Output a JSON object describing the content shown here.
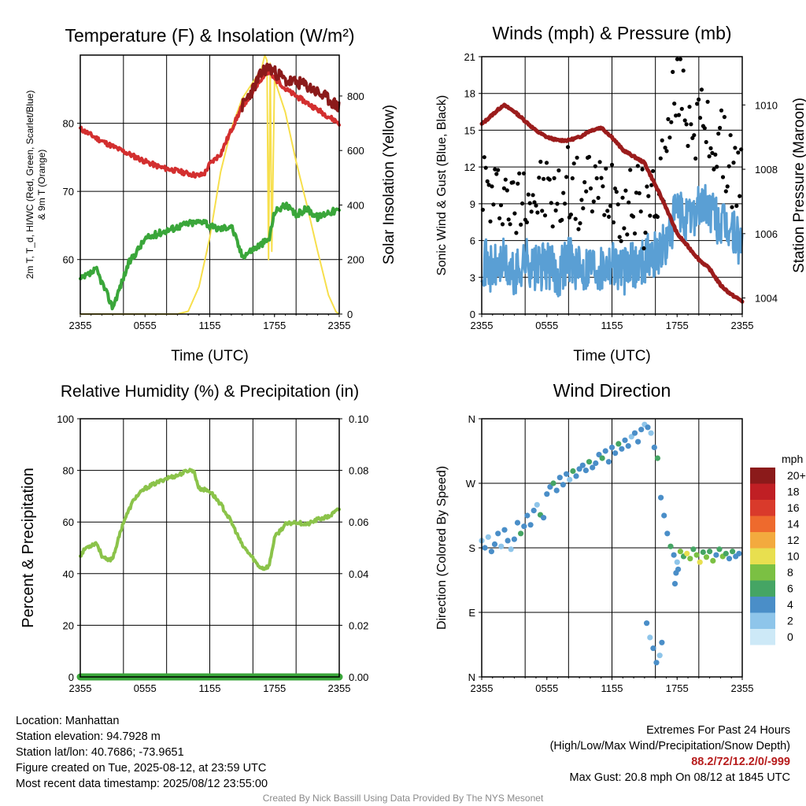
{
  "colors": {
    "temperature": "#d32f2f",
    "heat_index": "#8b1a1a",
    "dewpoint": "#3aa63a",
    "insolation": "#f7df4c",
    "wind": "#5a9fd4",
    "gust": "#000000",
    "pressure": "#9b1c1c",
    "humidity": "#8bc34a",
    "precip": "#3aa63a"
  },
  "x_ticks": [
    "2355",
    "0555",
    "1155",
    "1755",
    "2355"
  ],
  "xlabel_time": "Time (UTC)",
  "chart_data": [
    {
      "id": "temp",
      "type": "line",
      "title": "Temperature (F) & Insolation (W/m²)",
      "xlabel": "Time (UTC)",
      "ylabel_lines": [
        "2m T, T_d, HI/WC (Red, Green, Scarlet/Blue)",
        "& 9m T (Orange)"
      ],
      "ylabel_right": "Solar Insolation (Yellow)",
      "ylim": [
        52,
        90
      ],
      "y_ticks": [
        60,
        70,
        80
      ],
      "ylim_right": [
        0,
        950
      ],
      "y_ticks_right": [
        0,
        200,
        400,
        600,
        800
      ],
      "x": [
        0,
        1.5,
        3,
        4.5,
        6,
        7.5,
        9,
        10,
        11,
        11.5,
        12,
        13,
        14,
        15,
        16,
        16.5,
        17,
        17.5,
        18,
        18.5,
        19,
        20,
        21,
        22,
        23,
        24
      ],
      "series": [
        {
          "key": "temperature",
          "values": [
            79.2,
            77.8,
            76.6,
            75.5,
            74.4,
            73.5,
            73.0,
            72.6,
            72.3,
            72.6,
            74.0,
            75.5,
            79.0,
            82.5,
            84.5,
            86.0,
            87.0,
            87.5,
            86.5,
            86.0,
            85.0,
            84.0,
            83.0,
            82.0,
            81.0,
            80.0
          ]
        },
        {
          "key": "heat_index",
          "values": [
            null,
            null,
            null,
            null,
            null,
            null,
            null,
            null,
            null,
            null,
            null,
            null,
            null,
            82.5,
            85.0,
            86.5,
            87.8,
            88.2,
            87.5,
            87.0,
            86.2,
            86.0,
            85.5,
            84.5,
            83.5,
            82.3
          ]
        },
        {
          "key": "dewpoint",
          "values": [
            57.0,
            58.5,
            53.0,
            59.5,
            63.0,
            64.0,
            64.8,
            65.3,
            65.5,
            65.8,
            64.8,
            64.5,
            65.0,
            60.5,
            61.5,
            62.0,
            62.5,
            63.0,
            67.0,
            67.5,
            68.0,
            66.5,
            67.5,
            66.2,
            67.0,
            67.2
          ]
        }
      ],
      "insolation_x": [
        0,
        3,
        6,
        9,
        10,
        11,
        12,
        13,
        14,
        15,
        16,
        16.8,
        17.1,
        17.3,
        17.45,
        17.6,
        17.75,
        18,
        19,
        20,
        21,
        22,
        23,
        23.7,
        24
      ],
      "insolation": [
        0,
        0,
        0,
        0,
        10,
        100,
        280,
        520,
        680,
        790,
        850,
        900,
        950,
        930,
        200,
        920,
        230,
        860,
        740,
        560,
        400,
        230,
        70,
        8,
        0
      ]
    },
    {
      "id": "wind",
      "type": "line",
      "title": "Winds (mph) & Pressure (mb)",
      "xlabel": "Time (UTC)",
      "ylabel": "Sonic Wind & Gust (Blue, Black)",
      "ylabel_right": "Station Pressure (Maroon)",
      "ylim": [
        0,
        21
      ],
      "y_ticks": [
        0,
        3,
        6,
        9,
        12,
        15,
        18,
        21
      ],
      "ylim_right": [
        1003.5,
        1011.5
      ],
      "y_ticks_right": [
        1004,
        1006,
        1008,
        1010
      ],
      "x": [
        0,
        1,
        2,
        3,
        4,
        5,
        6,
        7,
        8,
        9,
        10,
        11,
        12,
        13,
        14,
        15,
        16,
        17,
        18,
        19,
        20,
        21,
        22,
        23,
        24
      ],
      "series": [
        {
          "key": "wind",
          "values": [
            4.5,
            3.5,
            4.2,
            3.0,
            4.5,
            3.6,
            4.0,
            3.2,
            4.8,
            3.5,
            4.2,
            3.8,
            4.5,
            3.4,
            4.0,
            4.5,
            5.0,
            5.5,
            8.5,
            7.5,
            9.0,
            8.5,
            7.2,
            6.8,
            5.5
          ]
        },
        {
          "key": "gust",
          "values": [
            11.5,
            9.0,
            10.5,
            8.2,
            10.8,
            9.5,
            10.0,
            8.8,
            11.2,
            9.2,
            10.5,
            9.8,
            11.0,
            8.8,
            9.5,
            8.5,
            9.8,
            13.0,
            19.5,
            16.5,
            15.5,
            14.5,
            13.5,
            12.0,
            10.5
          ]
        },
        {
          "key": "pressure",
          "values": [
            1009.4,
            1009.7,
            1010.0,
            1009.8,
            1009.5,
            1009.2,
            1009.0,
            1008.9,
            1008.9,
            1009.0,
            1009.2,
            1009.3,
            1009.0,
            1008.6,
            1008.4,
            1008.2,
            1007.5,
            1006.8,
            1006.0,
            1005.6,
            1005.2,
            1004.9,
            1004.4,
            1004.1,
            1003.9
          ]
        }
      ]
    },
    {
      "id": "rh",
      "type": "line",
      "title": "Relative Humidity (%) & Precipitation (in)",
      "ylabel": "Percent & Precipitation",
      "ylim": [
        0,
        100
      ],
      "y_ticks": [
        0,
        20,
        40,
        60,
        80,
        100
      ],
      "ylim_right": [
        0,
        0.1
      ],
      "y_ticks_right_labels": [
        "0.00",
        "0.02",
        "0.04",
        "0.06",
        "0.08",
        "0.10"
      ],
      "x": [
        0,
        0.5,
        1,
        1.5,
        2,
        2.5,
        3,
        4,
        5,
        6,
        7,
        8,
        9,
        10,
        10.5,
        11,
        12,
        13,
        14,
        15,
        16,
        16.5,
        17,
        17.5,
        18,
        19,
        20,
        21,
        22,
        23,
        24
      ],
      "series": [
        {
          "key": "humidity",
          "values": [
            47,
            50,
            51,
            52,
            47,
            45,
            46,
            60,
            69,
            73,
            75,
            77,
            78,
            80,
            80,
            73,
            72,
            67,
            60,
            51,
            46,
            43,
            42,
            43,
            54,
            59,
            60,
            59,
            61,
            62,
            65
          ]
        },
        {
          "key": "precip",
          "values": [
            0,
            0,
            0,
            0,
            0,
            0,
            0,
            0,
            0,
            0,
            0,
            0,
            0,
            0,
            0,
            0,
            0,
            0,
            0,
            0,
            0,
            0,
            0,
            0,
            0,
            0,
            0,
            0,
            0,
            0,
            0
          ]
        }
      ]
    },
    {
      "id": "dir",
      "type": "scatter",
      "title": "Wind Direction",
      "ylabel": "Direction (Colored By Speed)",
      "y_ticks": [
        0,
        90,
        180,
        270,
        360
      ],
      "y_tick_labels": [
        "N",
        "E",
        "S",
        "W",
        "N"
      ],
      "ylim": [
        0,
        360
      ],
      "legend_title": "mph",
      "legend_labels": [
        "0",
        "2",
        "4",
        "6",
        "8",
        "10",
        "12",
        "14",
        "16",
        "18",
        "20+"
      ],
      "legend_colors": [
        "#cde9f7",
        "#8ec5ea",
        "#4a8ec8",
        "#45a564",
        "#7bc043",
        "#e8df4f",
        "#f3aa3e",
        "#ee6a2d",
        "#d93a2b",
        "#c01f24",
        "#8b1a1a"
      ],
      "points": [
        [
          0.0,
          190,
          2
        ],
        [
          0.3,
          180,
          3
        ],
        [
          0.6,
          195,
          2
        ],
        [
          0.9,
          175,
          4
        ],
        [
          1.2,
          185,
          3
        ],
        [
          1.5,
          200,
          4
        ],
        [
          1.8,
          182,
          2
        ],
        [
          2.1,
          205,
          3
        ],
        [
          2.4,
          190,
          4
        ],
        [
          2.7,
          178,
          2
        ],
        [
          3.0,
          192,
          4
        ],
        [
          3.3,
          215,
          3
        ],
        [
          3.6,
          200,
          6
        ],
        [
          3.9,
          210,
          3
        ],
        [
          4.2,
          225,
          4
        ],
        [
          4.5,
          212,
          3
        ],
        [
          4.8,
          232,
          4
        ],
        [
          5.1,
          240,
          2
        ],
        [
          5.4,
          226,
          6
        ],
        [
          5.7,
          222,
          4
        ],
        [
          6.0,
          255,
          3
        ],
        [
          6.3,
          265,
          4
        ],
        [
          6.6,
          270,
          6
        ],
        [
          6.9,
          260,
          4
        ],
        [
          7.2,
          278,
          3
        ],
        [
          7.5,
          268,
          4
        ],
        [
          7.8,
          283,
          4
        ],
        [
          8.1,
          275,
          2
        ],
        [
          8.4,
          287,
          6
        ],
        [
          8.7,
          280,
          4
        ],
        [
          9.0,
          290,
          3
        ],
        [
          9.3,
          295,
          4
        ],
        [
          9.6,
          288,
          4
        ],
        [
          9.9,
          300,
          6
        ],
        [
          10.2,
          292,
          3
        ],
        [
          10.5,
          298,
          4
        ],
        [
          10.8,
          310,
          4
        ],
        [
          11.1,
          305,
          6
        ],
        [
          11.4,
          315,
          3
        ],
        [
          11.7,
          300,
          4
        ],
        [
          12.0,
          320,
          4
        ],
        [
          12.3,
          312,
          3
        ],
        [
          12.6,
          325,
          6
        ],
        [
          12.9,
          318,
          4
        ],
        [
          13.2,
          330,
          3
        ],
        [
          13.5,
          322,
          4
        ],
        [
          13.8,
          335,
          2
        ],
        [
          14.1,
          340,
          4
        ],
        [
          14.4,
          328,
          3
        ],
        [
          14.7,
          345,
          4
        ],
        [
          15.0,
          352,
          2
        ],
        [
          15.3,
          348,
          3
        ],
        [
          15.6,
          340,
          2
        ],
        [
          15.9,
          320,
          4
        ],
        [
          16.2,
          305,
          6
        ],
        [
          16.5,
          250,
          4
        ],
        [
          16.8,
          225,
          3
        ],
        [
          17.1,
          200,
          4
        ],
        [
          17.4,
          182,
          6
        ],
        [
          17.7,
          170,
          4
        ],
        [
          18.0,
          160,
          2
        ],
        [
          18.3,
          175,
          8
        ],
        [
          18.6,
          168,
          6
        ],
        [
          18.9,
          172,
          10
        ],
        [
          19.2,
          165,
          8
        ],
        [
          19.5,
          178,
          6
        ],
        [
          19.8,
          170,
          8
        ],
        [
          20.1,
          160,
          10
        ],
        [
          20.4,
          174,
          6
        ],
        [
          20.7,
          167,
          8
        ],
        [
          21.0,
          175,
          6
        ],
        [
          21.3,
          162,
          8
        ],
        [
          21.6,
          170,
          4
        ],
        [
          21.9,
          178,
          6
        ],
        [
          22.2,
          168,
          8
        ],
        [
          22.5,
          172,
          6
        ],
        [
          22.8,
          165,
          4
        ],
        [
          23.1,
          175,
          6
        ],
        [
          23.4,
          168,
          4
        ],
        [
          23.7,
          172,
          4
        ],
        [
          15.2,
          75,
          4
        ],
        [
          15.5,
          55,
          2
        ],
        [
          15.8,
          40,
          4
        ],
        [
          16.1,
          20,
          3
        ],
        [
          16.4,
          30,
          2
        ],
        [
          16.6,
          48,
          3
        ],
        [
          17.9,
          145,
          4
        ],
        [
          18.1,
          150,
          3
        ],
        [
          17.8,
          130,
          4
        ]
      ]
    }
  ],
  "info": {
    "location": "Location: Manhattan",
    "elevation": "Station elevation: 94.7928 m",
    "latlon": "Station lat/lon: 40.7686; -73.9651",
    "created": "Figure created on Tue, 2025-08-12, at 23:59 UTC",
    "recent": "Most recent data timestamp: 2025/08/12 23:55:00"
  },
  "extremes": {
    "title": "Extremes For Past 24 Hours",
    "subtitle": "(High/Low/Max Wind/Precipitation/Snow Depth)",
    "values": "88.2/72/12.2/0/-999",
    "gust": "Max Gust: 20.8 mph On 08/12 at 1845 UTC"
  },
  "credit": "Created By Nick Bassill Using Data Provided By The NYS Mesonet"
}
